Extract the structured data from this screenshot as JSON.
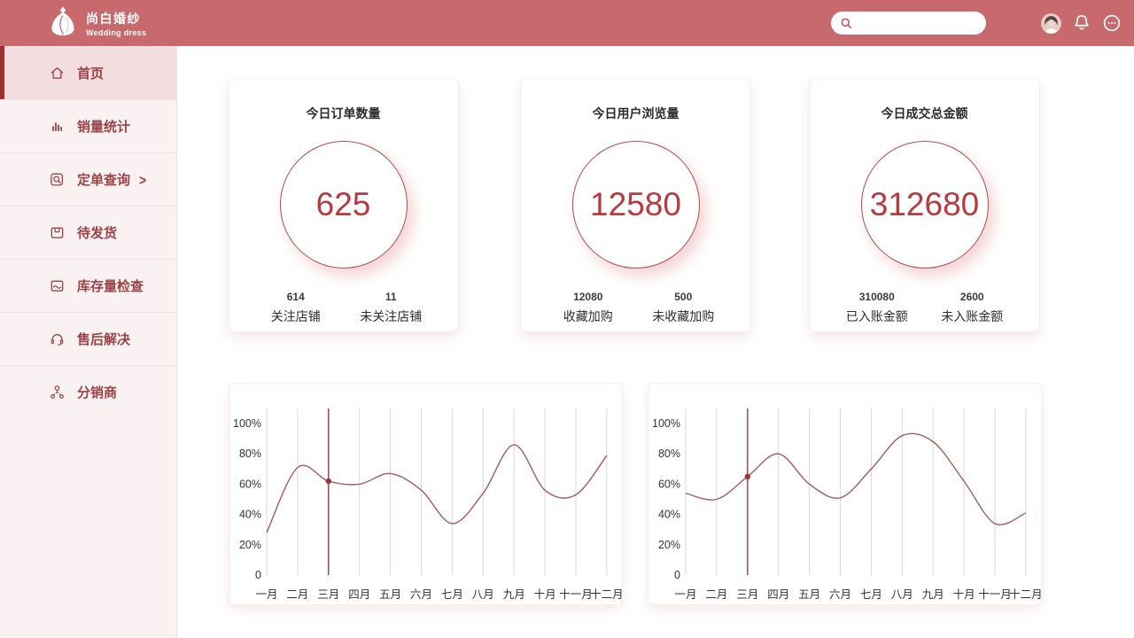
{
  "colors": {
    "header_bg": "#c7696d",
    "sidebar_bg": "#faf2f2",
    "active_stripe": "#9e2f35",
    "menu_red": "#9c4347",
    "stat_number_red": "#b63a3f",
    "circle_border": "#ad4b50",
    "chart_line": "#a25b61",
    "chart_grid": "#d8d8d8",
    "chart_highlight": "#8b2f35"
  },
  "header": {
    "brand": {
      "title": "尚白婚纱",
      "subtitle": "Wedding dress",
      "logo_icon": "wedding-dress-icon"
    },
    "search": {
      "value": "",
      "placeholder": "",
      "icon": "search-icon"
    },
    "right_icons": [
      "avatar",
      "bell-icon",
      "more-icon"
    ]
  },
  "sidebar": {
    "items": [
      {
        "label": "首页",
        "icon": "home-icon",
        "active": true
      },
      {
        "label": "销量统计",
        "icon": "bar-chart-icon",
        "active": false
      },
      {
        "label": "定单查询",
        "icon": "order-search-icon",
        "chevron": ">",
        "active": false
      },
      {
        "label": "待发货",
        "icon": "package-icon",
        "active": false
      },
      {
        "label": "库存量检查",
        "icon": "inventory-icon",
        "active": false
      },
      {
        "label": "售后解决",
        "icon": "headset-icon",
        "active": false
      },
      {
        "label": "分销商",
        "icon": "network-icon",
        "active": false
      }
    ]
  },
  "stat_cards": [
    {
      "title": "今日订单数量",
      "value": "625",
      "sub": [
        {
          "value": "614",
          "label": "关注店铺"
        },
        {
          "value": "11",
          "label": "未关注店铺"
        }
      ]
    },
    {
      "title": "今日用户浏览量",
      "value": "12580",
      "sub": [
        {
          "value": "12080",
          "label": "收藏加购"
        },
        {
          "value": "500",
          "label": "未收藏加购"
        }
      ]
    },
    {
      "title": "今日成交总金额",
      "value": "312680",
      "sub": [
        {
          "value": "310080",
          "label": "已入账金额"
        },
        {
          "value": "2600",
          "label": "未入账金额"
        }
      ]
    }
  ],
  "chart_data": [
    {
      "type": "line",
      "title": "",
      "x": [
        "一月",
        "二月",
        "三月",
        "四月",
        "五月",
        "六月",
        "七月",
        "八月",
        "九月",
        "十月",
        "十一月",
        "十二月"
      ],
      "series": [
        {
          "name": "monthly-percentage",
          "values": [
            28,
            71,
            62,
            60,
            67,
            56,
            34,
            54,
            86,
            56,
            53,
            79
          ]
        }
      ],
      "yticks": [
        100,
        80,
        60,
        40,
        20,
        0
      ],
      "ytick_labels": [
        "100%",
        "80%",
        "60%",
        "40%",
        "20%",
        "0"
      ],
      "ylim": [
        0,
        100
      ],
      "grid": "vertical-only",
      "legend": "none",
      "highlight": {
        "index": 2,
        "label": "三月",
        "value": 62
      }
    },
    {
      "type": "line",
      "title": "",
      "x": [
        "一月",
        "二月",
        "三月",
        "四月",
        "五月",
        "六月",
        "七月",
        "八月",
        "九月",
        "十月",
        "十一月",
        "十二月"
      ],
      "series": [
        {
          "name": "monthly-percentage",
          "values": [
            54,
            50,
            65,
            80,
            60,
            51,
            70,
            92,
            88,
            62,
            34,
            41
          ]
        }
      ],
      "yticks": [
        100,
        80,
        60,
        40,
        20,
        0
      ],
      "ytick_labels": [
        "100%",
        "80%",
        "60%",
        "40%",
        "20%",
        "0"
      ],
      "ylim": [
        0,
        100
      ],
      "grid": "vertical-only",
      "legend": "none",
      "highlight": {
        "index": 2,
        "label": "三月",
        "value": 65
      }
    }
  ]
}
